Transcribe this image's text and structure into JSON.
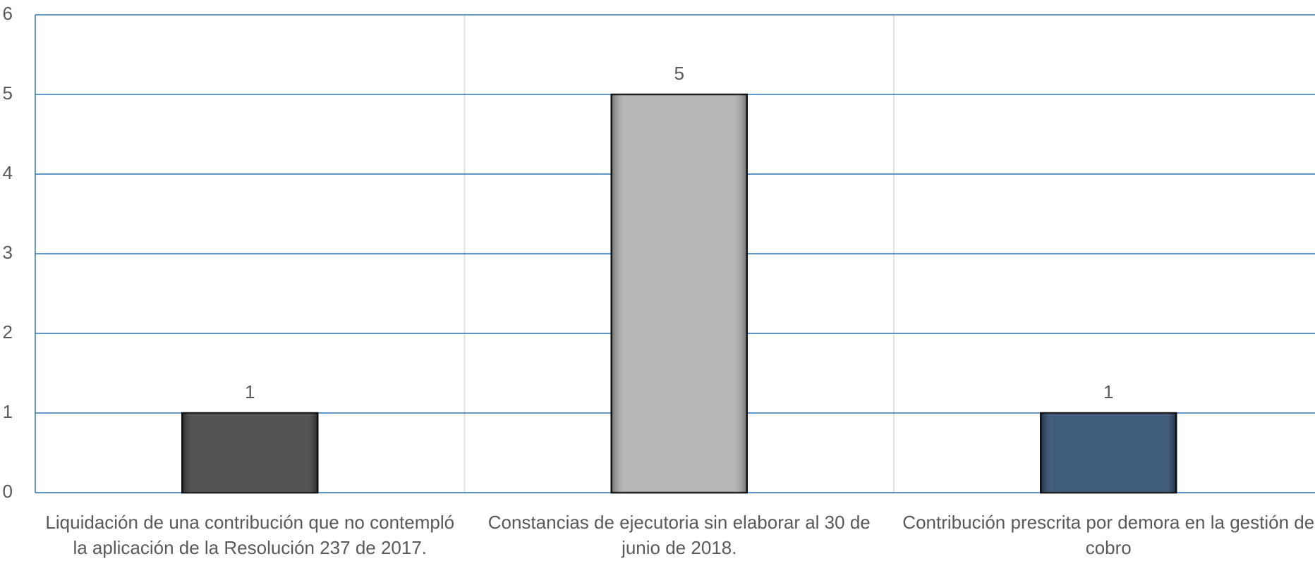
{
  "chart_data": {
    "type": "bar",
    "categories": [
      "Liquidación de una contribución que no contempló la aplicación de la Resolución 237 de 2017.",
      "Constancias de ejecutoria  sin elaborar al 30 de junio de 2018.",
      "Contribución prescrita por demora en la gestión de cobro"
    ],
    "values": [
      1,
      5,
      1
    ],
    "colors": [
      "#404040",
      "#afafaf",
      "#2b4a6f"
    ],
    "ylim": [
      0,
      6
    ],
    "yticks": [
      0,
      1,
      2,
      3,
      4,
      5,
      6
    ],
    "grid": true
  }
}
